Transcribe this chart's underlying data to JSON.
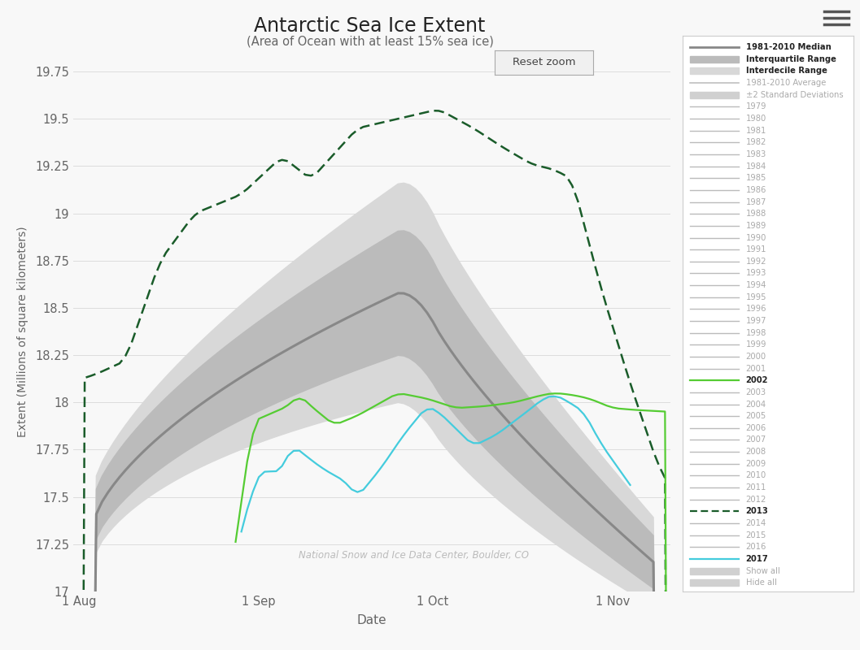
{
  "title": "Antarctic Sea Ice Extent",
  "subtitle": "(Area of Ocean with at least 15% sea ice)",
  "xlabel": "Date",
  "ylabel": "Extent (Millions of square kilometers)",
  "ylim": [
    17.0,
    19.75
  ],
  "yticks": [
    17.0,
    17.25,
    17.5,
    17.75,
    18.0,
    18.25,
    18.5,
    18.75,
    19.0,
    19.25,
    19.5,
    19.75
  ],
  "xtick_labels": [
    "1 Aug",
    "1 Sep",
    "1 Oct",
    "1 Nov"
  ],
  "xtick_positions": [
    0,
    31,
    61,
    92
  ],
  "total_days": 103,
  "watermark": "National Snow and Ice Data Center, Boulder, CO",
  "background_color": "#f8f8f8",
  "plot_bg_color": "#f8f8f8",
  "grid_color": "#dddddd",
  "median_color": "#888888",
  "iqr_color": "#bbbbbb",
  "interdecile_color": "#d8d8d8",
  "year2013_color": "#1a5c2a",
  "year2002_color": "#55cc33",
  "year2017_color": "#44ccdd",
  "faded_line_color": "#bbbbbb",
  "faded_text_color": "#aaaaaa",
  "active_text_color": "#222222",
  "legend_border_color": "#cccccc",
  "btn_border_color": "#aaaaaa",
  "btn_text_color": "#444444"
}
